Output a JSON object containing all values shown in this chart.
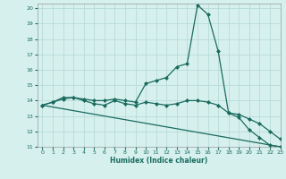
{
  "xlabel": "Humidex (Indice chaleur)",
  "background_color": "#d6f0ee",
  "grid_color": "#b8dbd8",
  "line_color": "#1a6b5e",
  "xlim": [
    -0.5,
    23
  ],
  "ylim": [
    11,
    20.3
  ],
  "yticks": [
    11,
    12,
    13,
    14,
    15,
    16,
    17,
    18,
    19,
    20
  ],
  "xticks": [
    0,
    1,
    2,
    3,
    4,
    5,
    6,
    7,
    8,
    9,
    10,
    11,
    12,
    13,
    14,
    15,
    16,
    17,
    18,
    19,
    20,
    21,
    22,
    23
  ],
  "series": [
    {
      "x": [
        0,
        1,
        2,
        3,
        4,
        5,
        6,
        7,
        8,
        9,
        10,
        11,
        12,
        13,
        14,
        15,
        16,
        17,
        18,
        19,
        20,
        21,
        22,
        23
      ],
      "y": [
        13.7,
        13.9,
        14.2,
        14.2,
        14.1,
        14.0,
        14.0,
        14.1,
        14.0,
        13.9,
        15.1,
        15.3,
        15.5,
        16.2,
        16.4,
        20.2,
        19.6,
        17.2,
        13.2,
        12.9,
        12.1,
        11.6,
        11.1,
        11.0
      ],
      "marker": "D",
      "markersize": 2.0,
      "linewidth": 0.9,
      "has_marker": true
    },
    {
      "x": [
        0,
        1,
        2,
        3,
        4,
        5,
        6,
        7,
        8,
        9,
        10,
        11,
        12,
        13,
        14,
        15,
        16,
        17,
        18,
        19,
        20,
        21,
        22,
        23
      ],
      "y": [
        13.7,
        13.9,
        14.1,
        14.2,
        14.0,
        13.8,
        13.7,
        14.0,
        13.8,
        13.7,
        13.9,
        13.8,
        13.7,
        13.8,
        14.0,
        14.0,
        13.9,
        13.7,
        13.2,
        13.1,
        12.8,
        12.5,
        12.0,
        11.5
      ],
      "marker": "D",
      "markersize": 2.0,
      "linewidth": 0.9,
      "has_marker": true
    },
    {
      "x": [
        0,
        23
      ],
      "y": [
        13.7,
        11.0
      ],
      "marker": null,
      "markersize": 0,
      "linewidth": 0.9,
      "has_marker": false
    }
  ]
}
